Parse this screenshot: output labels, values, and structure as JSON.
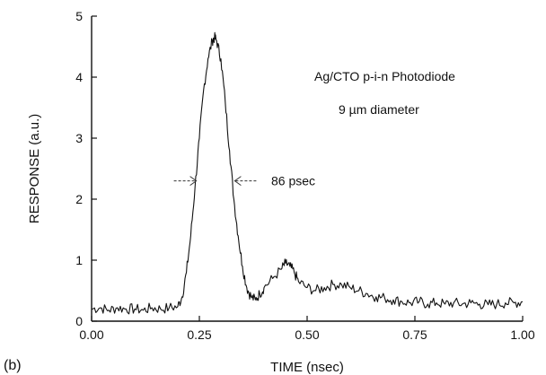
{
  "chart_data": {
    "type": "line",
    "panel_label": "(b)",
    "xlabel": "TIME (nsec)",
    "ylabel": "RESPONSE (a.u.)",
    "xlim": [
      0,
      1
    ],
    "ylim": [
      0,
      5
    ],
    "x_ticks": [
      "0.00",
      "0.25",
      "0.50",
      "0.75",
      "1.00"
    ],
    "y_ticks": [
      "0",
      "1",
      "2",
      "3",
      "4",
      "5"
    ],
    "annotation_lines": [
      "Ag/CTO p-i-n Photodiode",
      "9 µm diameter"
    ],
    "fwhm_label": "86 psec",
    "fwhm_markers": [
      0.245,
      0.33
    ],
    "fwhm_level": 2.3,
    "grid": false,
    "series": [
      {
        "x": [
          0.0,
          0.02,
          0.04,
          0.06,
          0.08,
          0.1,
          0.12,
          0.14,
          0.16,
          0.18,
          0.2,
          0.21,
          0.22,
          0.23,
          0.24,
          0.25,
          0.26,
          0.27,
          0.28,
          0.285,
          0.29,
          0.3,
          0.31,
          0.32,
          0.33,
          0.34,
          0.35,
          0.36,
          0.37,
          0.38,
          0.39,
          0.4,
          0.42,
          0.44,
          0.45,
          0.46,
          0.47,
          0.48,
          0.5,
          0.52,
          0.54,
          0.56,
          0.58,
          0.6,
          0.62,
          0.64,
          0.66,
          0.68,
          0.7,
          0.72,
          0.74,
          0.76,
          0.78,
          0.8,
          0.82,
          0.84,
          0.86,
          0.88,
          0.9,
          0.92,
          0.94,
          0.96,
          0.98,
          1.0
        ],
        "values": [
          0.2,
          0.22,
          0.18,
          0.22,
          0.2,
          0.2,
          0.18,
          0.22,
          0.2,
          0.22,
          0.24,
          0.4,
          0.8,
          1.4,
          2.2,
          3.0,
          3.8,
          4.3,
          4.6,
          4.65,
          4.6,
          4.3,
          3.6,
          2.8,
          2.0,
          1.4,
          0.9,
          0.55,
          0.4,
          0.35,
          0.45,
          0.55,
          0.7,
          0.85,
          0.95,
          0.9,
          0.8,
          0.65,
          0.55,
          0.5,
          0.55,
          0.6,
          0.6,
          0.55,
          0.5,
          0.45,
          0.4,
          0.38,
          0.35,
          0.32,
          0.3,
          0.32,
          0.28,
          0.3,
          0.28,
          0.3,
          0.28,
          0.3,
          0.28,
          0.27,
          0.28,
          0.3,
          0.3,
          0.32
        ]
      }
    ]
  }
}
